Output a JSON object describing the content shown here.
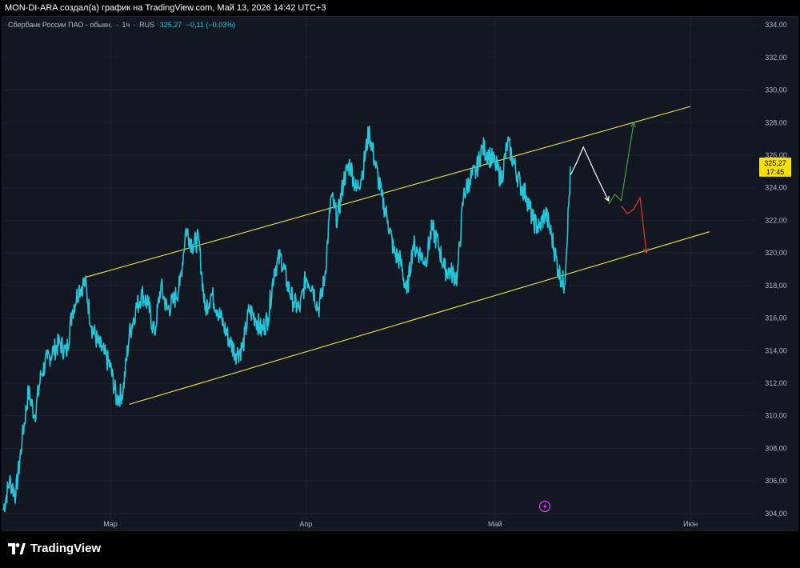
{
  "header": {
    "title": "MON-DI-ARA создал(а) график на TradingView.com, Май 13, 2026 14:42 UTC+3"
  },
  "legend": {
    "symbol": "Сбербанк России ПАО - обыкн.",
    "interval": "1ч",
    "exchange": "RUS",
    "last": "325,27",
    "change": "−0,11 (−0,03%)"
  },
  "price_tag": {
    "price": "325,27",
    "countdown": "17:45"
  },
  "brand": {
    "name": "TradingView"
  },
  "colors": {
    "background": "#131722",
    "series": "#26c6da",
    "channel": "#f5e14a",
    "grid": "#1e2230",
    "price_tag": "#f5e000",
    "projection_white": "#ffffff",
    "projection_green": "#3aa33a",
    "projection_red": "#e03a3a"
  },
  "icons": {
    "event": "lightning-icon",
    "logo": "tradingview-logo-icon"
  },
  "chart_data": {
    "type": "line",
    "xlim": [
      "2026-02-12",
      "2026-06-11"
    ],
    "ylim": [
      303.5,
      334.5
    ],
    "y_ticks": [
      "304,00",
      "306,00",
      "308,00",
      "310,00",
      "312,00",
      "314,00",
      "316,00",
      "318,00",
      "320,00",
      "322,00",
      "324,00",
      "326,00",
      "328,00",
      "330,00",
      "332,00",
      "334,00"
    ],
    "y_tick_values": [
      304,
      306,
      308,
      310,
      312,
      314,
      316,
      318,
      320,
      322,
      324,
      326,
      328,
      330,
      332,
      334
    ],
    "x_ticks": [
      {
        "label": "Мар",
        "date": "2026-03-01"
      },
      {
        "label": "Апр",
        "date": "2026-04-01"
      },
      {
        "label": "Май",
        "date": "2026-05-01"
      },
      {
        "label": "Июн",
        "date": "2026-06-01"
      }
    ],
    "series": [
      {
        "x": [
          "2026-02-12",
          "2026-02-13",
          "2026-02-14",
          "2026-02-15",
          "2026-02-16",
          "2026-02-17",
          "2026-02-18",
          "2026-02-19",
          "2026-02-20",
          "2026-02-21",
          "2026-02-22",
          "2026-02-23",
          "2026-02-24",
          "2026-02-25",
          "2026-02-26",
          "2026-02-27",
          "2026-02-28",
          "2026-03-01",
          "2026-03-02",
          "2026-03-03",
          "2026-03-04",
          "2026-03-05",
          "2026-03-06",
          "2026-03-07",
          "2026-03-08",
          "2026-03-09",
          "2026-03-10",
          "2026-03-11",
          "2026-03-12",
          "2026-03-13",
          "2026-03-14",
          "2026-03-15",
          "2026-03-16",
          "2026-03-17",
          "2026-03-18",
          "2026-03-19",
          "2026-03-20",
          "2026-03-21",
          "2026-03-22",
          "2026-03-23",
          "2026-03-24",
          "2026-03-25",
          "2026-03-26",
          "2026-03-27",
          "2026-03-28",
          "2026-03-29",
          "2026-03-30",
          "2026-03-31",
          "2026-04-01",
          "2026-04-02",
          "2026-04-03",
          "2026-04-04",
          "2026-04-05",
          "2026-04-06",
          "2026-04-07",
          "2026-04-08",
          "2026-04-09",
          "2026-04-10",
          "2026-04-11",
          "2026-04-12",
          "2026-04-13",
          "2026-04-14",
          "2026-04-15",
          "2026-04-16",
          "2026-04-17",
          "2026-04-18",
          "2026-04-19",
          "2026-04-20",
          "2026-04-21",
          "2026-04-22",
          "2026-04-23",
          "2026-04-24",
          "2026-04-25",
          "2026-04-26",
          "2026-04-27",
          "2026-04-28",
          "2026-04-29",
          "2026-04-30",
          "2026-05-01",
          "2026-05-02",
          "2026-05-03",
          "2026-05-04",
          "2026-05-05",
          "2026-05-06",
          "2026-05-07",
          "2026-05-08",
          "2026-05-09",
          "2026-05-10",
          "2026-05-11",
          "2026-05-12",
          "2026-05-13"
        ],
        "y": [
          304.2,
          306.0,
          305.2,
          308.5,
          311.5,
          310.0,
          312.5,
          313.5,
          314.0,
          314.5,
          313.8,
          316.5,
          317.8,
          318.2,
          315.5,
          314.5,
          313.8,
          313.0,
          311.0,
          311.5,
          315.0,
          316.5,
          317.5,
          316.8,
          315.0,
          318.0,
          316.5,
          317.0,
          318.0,
          321.5,
          320.5,
          320.8,
          316.5,
          317.5,
          316.5,
          315.5,
          314.5,
          313.8,
          314.2,
          316.5,
          316.0,
          315.2,
          316.0,
          319.0,
          319.8,
          318.2,
          317.0,
          316.5,
          318.5,
          318.0,
          316.5,
          318.5,
          323.5,
          322.0,
          324.5,
          325.5,
          323.8,
          325.0,
          327.5,
          325.5,
          323.5,
          322.0,
          320.0,
          319.5,
          317.5,
          320.5,
          320.0,
          319.5,
          321.5,
          320.5,
          319.0,
          318.8,
          318.5,
          323.5,
          324.5,
          325.0,
          326.5,
          326.0,
          325.5,
          324.5,
          326.8,
          325.5,
          324.2,
          323.5,
          322.0,
          321.5,
          322.5,
          321.0,
          319.0,
          318.0,
          325.27
        ]
      }
    ],
    "annotations": [
      {
        "type": "trend-line",
        "name": "channel-upper-line",
        "color": "#f5e14a",
        "points": [
          [
            "2026-02-25",
            318.5
          ],
          [
            "2026-06-01",
            329.0
          ]
        ]
      },
      {
        "type": "trend-line",
        "name": "channel-lower-line",
        "color": "#f5e14a",
        "points": [
          [
            "2026-03-04",
            310.7
          ],
          [
            "2026-06-04",
            321.3
          ]
        ]
      },
      {
        "type": "projection",
        "name": "projection-white",
        "color": "#ffffff",
        "points": [
          [
            "2026-05-13",
            324.8
          ],
          [
            "2026-05-14",
            325.6
          ],
          [
            "2026-05-15",
            326.5
          ],
          [
            "2026-05-17",
            324.8
          ],
          [
            "2026-05-19",
            323.2
          ]
        ]
      },
      {
        "type": "projection",
        "name": "projection-green",
        "color": "#3aa33a",
        "points": [
          [
            "2026-05-19",
            323.0
          ],
          [
            "2026-05-20",
            323.6
          ],
          [
            "2026-05-21",
            323.2
          ],
          [
            "2026-05-23",
            328.0
          ]
        ]
      },
      {
        "type": "projection",
        "name": "projection-red",
        "color": "#e03a3a",
        "points": [
          [
            "2026-05-21",
            322.9
          ],
          [
            "2026-05-22",
            322.4
          ],
          [
            "2026-05-23",
            322.7
          ],
          [
            "2026-05-24",
            323.4
          ],
          [
            "2026-05-25",
            320.0
          ]
        ]
      }
    ]
  }
}
